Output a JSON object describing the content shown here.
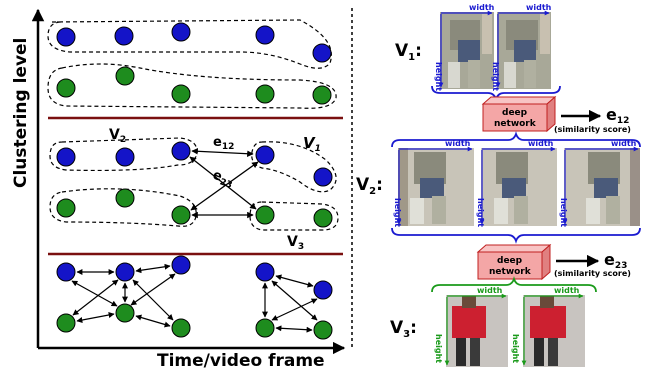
{
  "left_panel": {
    "y_axis_label": "Clustering level",
    "x_axis_label": "Time/video frame",
    "level2_labels": {
      "v2": "V2",
      "v1": "V1",
      "v3": "V3",
      "e12": "e12",
      "e23": "e23"
    }
  },
  "right_panel": {
    "v1": {
      "label": "V",
      "sub": "1",
      "colon": ":",
      "width_label": "width",
      "height_label": "height"
    },
    "v2": {
      "label": "V",
      "sub": "2",
      "colon": ":",
      "width_label": "width",
      "height_label": "height"
    },
    "v3": {
      "label": "V",
      "sub": "3",
      "colon": ":",
      "width_label": "width",
      "height_label": "height"
    },
    "network1": {
      "line1": "deep",
      "line2": "network",
      "output": "e",
      "output_sub": "12",
      "score": "(similarity score)"
    },
    "network2": {
      "line1": "deep",
      "line2": "network",
      "output": "e",
      "output_sub": "23",
      "score": "(similarity score)"
    }
  },
  "colors": {
    "blue_node": "#1414c8",
    "green_node": "#1e8c1e",
    "separator": "#7a1010",
    "network_fill": "#f4a6a6",
    "brace_blue": "#1a1ad0",
    "brace_green": "#1a9a1a",
    "photo_v1": "#9a9a88",
    "photo_v3_jacket": "#cc2030"
  }
}
